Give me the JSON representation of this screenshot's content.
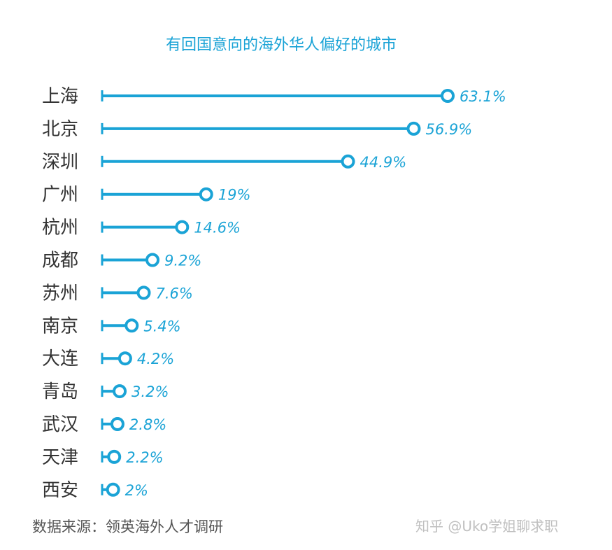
{
  "chart_data": {
    "type": "bar",
    "title": "有回国意向的海外华人偏好的城市",
    "categories": [
      "上海",
      "北京",
      "深圳",
      "广州",
      "杭州",
      "成都",
      "苏州",
      "南京",
      "大连",
      "青岛",
      "武汉",
      "天津",
      "西安"
    ],
    "values": [
      63.1,
      56.9,
      44.9,
      19,
      14.6,
      9.2,
      7.6,
      5.4,
      4.2,
      3.2,
      2.8,
      2.2,
      2
    ],
    "value_labels": [
      "63.1%",
      "56.9%",
      "44.9%",
      "19%",
      "14.6%",
      "9.2%",
      "7.6%",
      "5.4%",
      "4.2%",
      "3.2%",
      "2.8%",
      "2.2%",
      "2%"
    ],
    "unit": "%",
    "xlim": [
      0,
      63.1
    ],
    "grid": false,
    "orientation": "horizontal",
    "mark_style": "lollipop",
    "color": "#1aa3d6"
  },
  "source": "数据来源：领英海外人才调研",
  "watermark": "知乎 @Uko学姐聊求职"
}
